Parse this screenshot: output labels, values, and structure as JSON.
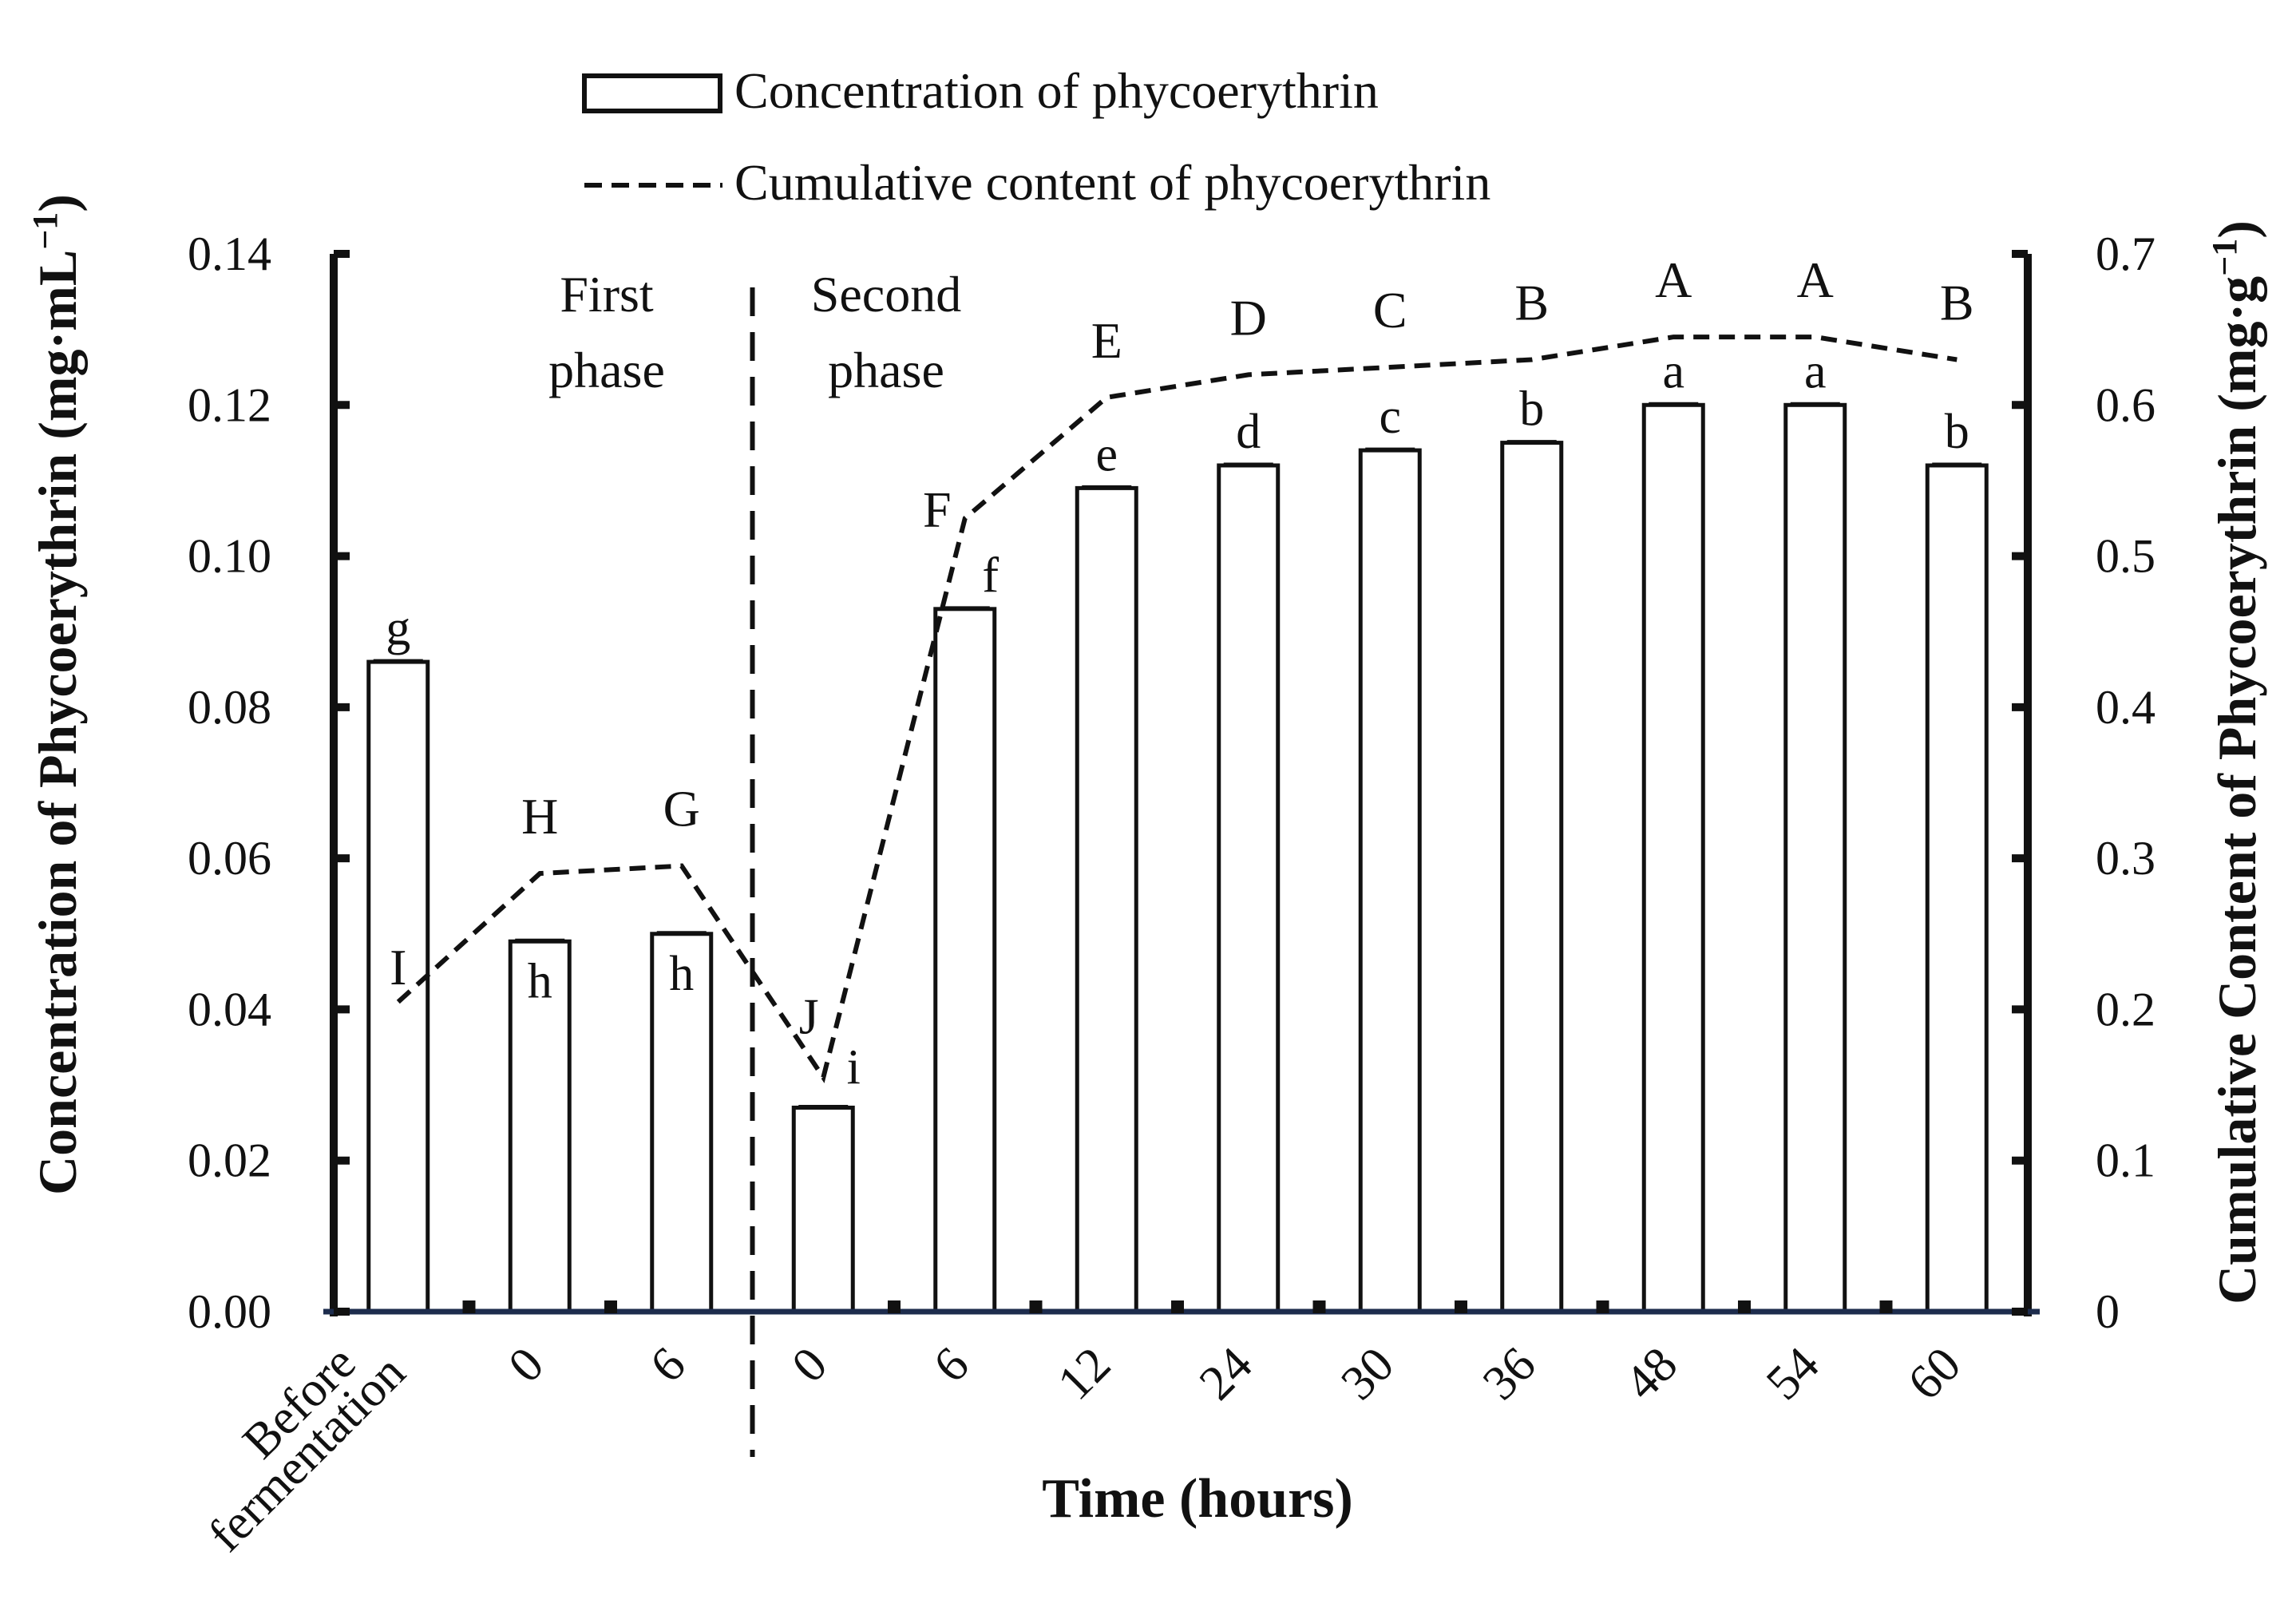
{
  "chart_data": {
    "type": "bar+line",
    "legend": {
      "bar": "Concentration of phycoerythrin",
      "line": "Cumulative content of phycoerythrin"
    },
    "categories": [
      "Before fermentation",
      "0",
      "6",
      "0",
      "6",
      "12",
      "24",
      "30",
      "36",
      "48",
      "54",
      "60"
    ],
    "bar_series": {
      "name": "Concentration of phycoerythrin",
      "axis": "left",
      "values": [
        0.086,
        0.049,
        0.05,
        0.027,
        0.093,
        0.109,
        0.112,
        0.114,
        0.115,
        0.12,
        0.12,
        0.112
      ],
      "labels": [
        "g",
        "h",
        "h",
        "i",
        "f",
        "e",
        "d",
        "c",
        "b",
        "a",
        "a",
        "b"
      ]
    },
    "line_series": {
      "name": "Cumulative content of phycoerythrin",
      "axis": "right",
      "values": [
        0.205,
        0.29,
        0.295,
        0.155,
        0.525,
        0.605,
        0.62,
        0.625,
        0.63,
        0.645,
        0.645,
        0.63
      ],
      "labels": [
        "I",
        "H",
        "G",
        "J",
        "F",
        "E",
        "D",
        "C",
        "B",
        "A",
        "A",
        "B"
      ]
    },
    "left_axis": {
      "label": "Concentration of Phycoerythrin (mg·mL",
      "label_sup": "−1",
      "label_end": ")",
      "ylim": [
        0,
        0.14
      ],
      "ticks": [
        "0.00",
        "0.02",
        "0.04",
        "0.06",
        "0.08",
        "0.10",
        "0.12",
        "0.14"
      ]
    },
    "right_axis": {
      "label": "Cumulative Content of Phycoerythrin (mg·g",
      "label_sup": "−1",
      "label_end": ")",
      "ylim": [
        0,
        0.7
      ],
      "ticks": [
        "0",
        "0.1",
        "0.2",
        "0.3",
        "0.4",
        "0.5",
        "0.6",
        "0.7"
      ]
    },
    "xlabel": "Time (hours)",
    "first_category_lines": [
      "Before",
      "fermentation"
    ],
    "phases": [
      {
        "lines": [
          "First",
          "phase"
        ]
      },
      {
        "lines": [
          "Second",
          "phase"
        ]
      }
    ],
    "phase_divider_after_index": 2
  }
}
